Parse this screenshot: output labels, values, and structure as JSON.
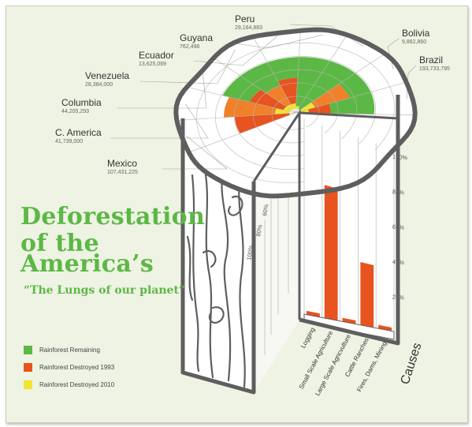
{
  "title_lines": [
    "Deforestation",
    "of the",
    "America’s"
  ],
  "subtitle": "“The Lungs of our planet”",
  "legend": [
    {
      "label": "Rainforest Remaining",
      "color": "#5cb845"
    },
    {
      "label": "Rainforest Destroyed 1993",
      "color": "#e8531f"
    },
    {
      "label": "Rainforest Destroyed 2010",
      "color": "#f2e531"
    }
  ],
  "colors": {
    "remaining": "#5cb845",
    "destroyed_1993": "#e8531f",
    "destroyed_1993_light": "#f0802a",
    "destroyed_2010": "#f2e531",
    "outline": "#5e5e5e",
    "background": "#eef3e3"
  },
  "chart_data": [
    {
      "type": "pie",
      "variant": "concentric rings on tree-stump top",
      "categories": [
        "Mexico",
        "C. America",
        "Columbia",
        "Venezuela",
        "Ecuador",
        "Guyana",
        "Peru",
        "Bolivia",
        "Brazil"
      ],
      "population_labels": [
        "107,431,225",
        "41,739,000",
        "44,205,293",
        "28,384,000",
        "13,625,069",
        "762,498",
        "29,164,883",
        "9,862,860",
        "193,733,795"
      ],
      "series": [
        {
          "name": "Rainforest Remaining",
          "values": [
            0.0,
            0.0,
            0.4,
            0.5,
            0.4,
            0.95,
            1.0,
            0.3,
            0.6
          ]
        },
        {
          "name": "Rainforest Destroyed 1993",
          "values": [
            0.75,
            0.7,
            0.5,
            0.4,
            0.5,
            0.0,
            0.0,
            0.5,
            0.3
          ]
        },
        {
          "name": "Rainforest Destroyed 2010",
          "values": [
            0.0,
            0.2,
            0.1,
            0.1,
            0.1,
            0.05,
            0.0,
            0.2,
            0.1
          ]
        }
      ]
    },
    {
      "type": "bar",
      "categories": [
        "Logging",
        "Small Scale Agriculture",
        "Large Scale Agricvulture",
        "Cattle Ranches",
        "Fires, Dams, Mining"
      ],
      "series": [
        {
          "name": "",
          "values": [
            2,
            72,
            2,
            35,
            2
          ]
        }
      ],
      "xlabel": "Causes",
      "ylabel": "",
      "ylim": [
        0,
        100
      ],
      "yticks": [
        "20%",
        "40%",
        "60%",
        "80%",
        "100%"
      ],
      "front_scale_ticks": [
        "20%",
        "40%",
        "60%",
        "80%",
        "100%"
      ]
    }
  ]
}
